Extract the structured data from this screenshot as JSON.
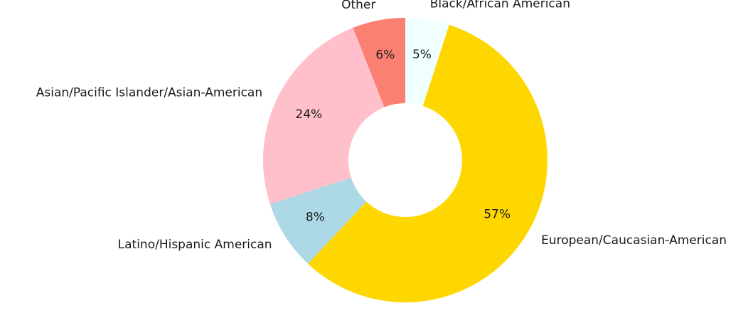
{
  "chart_data": {
    "type": "pie",
    "donut": true,
    "title": "",
    "legend": "none",
    "slices": [
      {
        "label": "Black/African American",
        "value": 5,
        "pct_label": "5%",
        "color": "#F0FFFF"
      },
      {
        "label": "European/Caucasian-American",
        "value": 57,
        "pct_label": "57%",
        "color": "#FFD700"
      },
      {
        "label": "Latino/Hispanic American",
        "value": 8,
        "pct_label": "8%",
        "color": "#ADD8E6"
      },
      {
        "label": "Asian/Pacific Islander/Asian-American",
        "value": 24,
        "pct_label": "24%",
        "color": "#FFC0CB"
      },
      {
        "label": "Other",
        "value": 6,
        "pct_label": "6%",
        "color": "#FA8072"
      }
    ]
  }
}
